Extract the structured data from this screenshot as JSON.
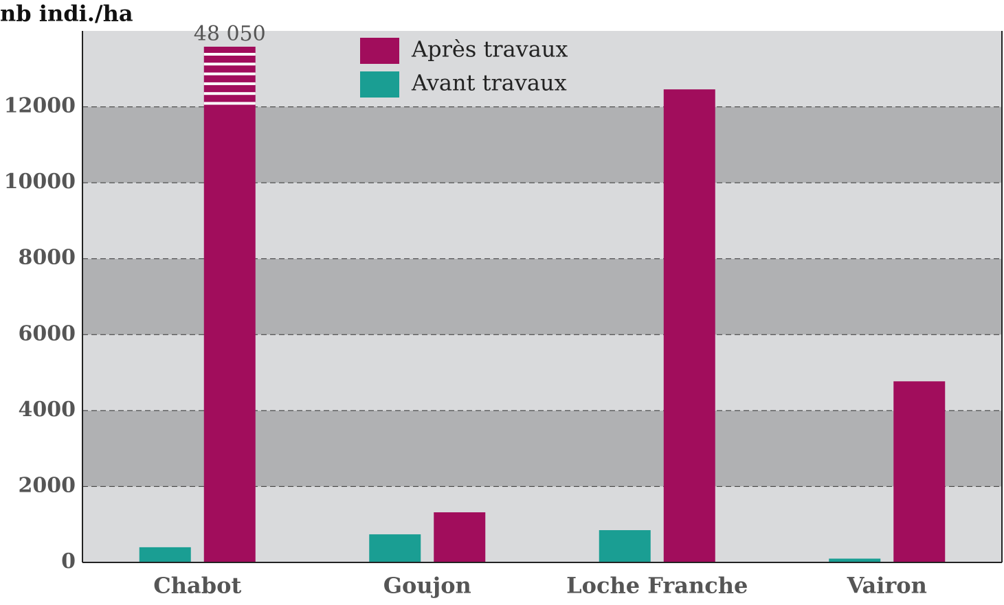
{
  "chart_data": {
    "type": "bar",
    "y_label": "nb indi./ha",
    "categories": [
      "Chabot",
      "Goujon",
      "Loche Franche",
      "Vairon"
    ],
    "series": [
      {
        "name": "Avant travaux",
        "color": "#1a9e93",
        "values": [
          400,
          740,
          850,
          100
        ]
      },
      {
        "name": "Après travaux",
        "color": "#a10d5c",
        "values": [
          48050,
          1320,
          12460,
          4770
        ],
        "value_labels": [
          "48 050",
          null,
          null,
          null
        ]
      }
    ],
    "ylim": [
      0,
      14000
    ],
    "yticks": [
      0,
      2000,
      4000,
      6000,
      8000,
      10000,
      12000
    ],
    "grid": true,
    "legend": "top"
  }
}
